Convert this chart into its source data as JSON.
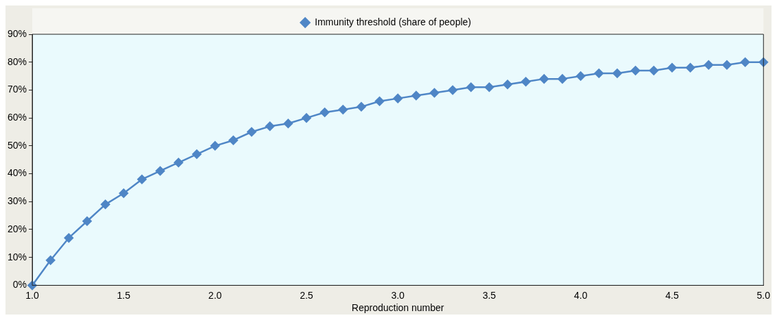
{
  "chart_data": {
    "type": "line",
    "xlabel": "Reproduction number",
    "x": [
      1.0,
      1.1,
      1.2,
      1.3,
      1.4,
      1.5,
      1.6,
      1.7,
      1.8,
      1.9,
      2.0,
      2.1,
      2.2,
      2.3,
      2.4,
      2.5,
      2.6,
      2.7,
      2.8,
      2.9,
      3.0,
      3.1,
      3.2,
      3.3,
      3.4,
      3.5,
      3.6,
      3.7,
      3.8,
      3.9,
      4.0,
      4.1,
      4.2,
      4.3,
      4.4,
      4.5,
      4.6,
      4.7,
      4.8,
      4.9,
      5.0
    ],
    "series": [
      {
        "name": "Immunity threshold (share of people)",
        "color": "#4f86c6",
        "values": [
          0,
          9,
          17,
          23,
          29,
          33,
          38,
          41,
          44,
          47,
          50,
          52,
          55,
          57,
          58,
          60,
          62,
          63,
          64,
          66,
          67,
          68,
          69,
          70,
          71,
          71,
          72,
          73,
          74,
          74,
          75,
          76,
          76,
          77,
          77,
          78,
          78,
          79,
          79,
          80,
          80
        ]
      }
    ],
    "xlim": [
      1.0,
      5.0
    ],
    "xticks": [
      {
        "value": 1.0,
        "label": "1.0"
      },
      {
        "value": 1.5,
        "label": "1.5"
      },
      {
        "value": 2.0,
        "label": "2.0"
      },
      {
        "value": 2.5,
        "label": "2.5"
      },
      {
        "value": 3.0,
        "label": "3.0"
      },
      {
        "value": 3.5,
        "label": "3.5"
      },
      {
        "value": 4.0,
        "label": "4.0"
      },
      {
        "value": 4.5,
        "label": "4.5"
      },
      {
        "value": 5.0,
        "label": "5.0"
      }
    ],
    "ylim": [
      0,
      90
    ],
    "yticks": [
      {
        "value": 0,
        "label": "0%"
      },
      {
        "value": 10,
        "label": "10%"
      },
      {
        "value": 20,
        "label": "20%"
      },
      {
        "value": 30,
        "label": "30%"
      },
      {
        "value": 40,
        "label": "40%"
      },
      {
        "value": 50,
        "label": "50%"
      },
      {
        "value": 60,
        "label": "60%"
      },
      {
        "value": 70,
        "label": "70%"
      },
      {
        "value": 80,
        "label": "80%"
      },
      {
        "value": 90,
        "label": "90%"
      }
    ],
    "grid": false,
    "legend": "top",
    "marker": "diamond",
    "line_style": "solid"
  }
}
